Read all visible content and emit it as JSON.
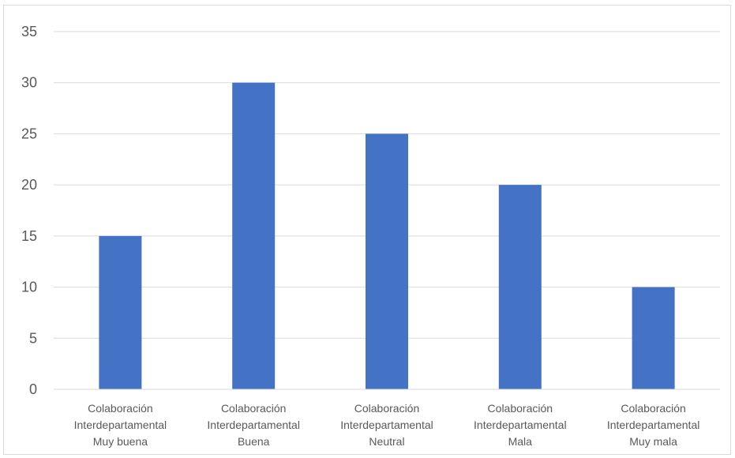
{
  "chart_data": {
    "type": "bar",
    "title": "",
    "xlabel": "",
    "ylabel": "",
    "ylim": [
      0,
      35
    ],
    "yticks": [
      0,
      5,
      10,
      15,
      20,
      25,
      30,
      35
    ],
    "grid": true,
    "legend": "none",
    "bar_color": "#4472C4",
    "categories": [
      [
        "Colaboración",
        "Interdepartamental",
        "Muy buena"
      ],
      [
        "Colaboración",
        "Interdepartamental",
        "Buena"
      ],
      [
        "Colaboración",
        "Interdepartamental",
        "Neutral"
      ],
      [
        "Colaboración",
        "Interdepartamental",
        "Mala"
      ],
      [
        "Colaboración",
        "Interdepartamental",
        "Muy mala"
      ]
    ],
    "values": [
      15,
      30,
      25,
      20,
      10
    ]
  },
  "colors": {
    "bar": "#4472C4",
    "gridline": "#d9d9d9",
    "axis_text": "#595959"
  }
}
